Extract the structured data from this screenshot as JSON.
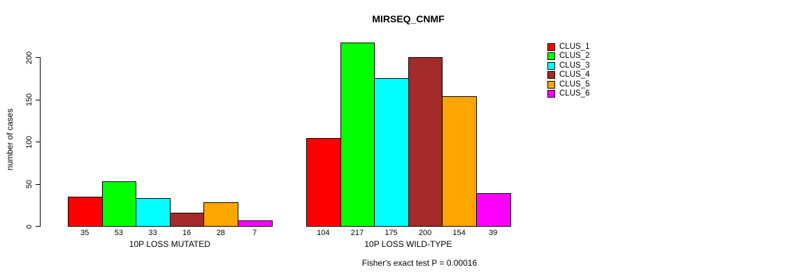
{
  "chart_data": {
    "type": "bar",
    "title": "MIRSEQ_CNMF",
    "ylabel": "number of cases",
    "xlabel": "",
    "ylim": [
      0,
      200
    ],
    "yticks": [
      0,
      50,
      100,
      150,
      200
    ],
    "grid": false,
    "legend_position": "right",
    "categories": [
      "10P LOSS MUTATED",
      "10P LOSS WILD-TYPE"
    ],
    "series": [
      {
        "name": "CLUS_1",
        "color": "#FF0000",
        "values": [
          35,
          104
        ]
      },
      {
        "name": "CLUS_2",
        "color": "#00FF00",
        "values": [
          53,
          217
        ]
      },
      {
        "name": "CLUS_3",
        "color": "#00FFFF",
        "values": [
          33,
          175
        ]
      },
      {
        "name": "CLUS_4",
        "color": "#A52A2A",
        "values": [
          16,
          200
        ]
      },
      {
        "name": "CLUS_5",
        "color": "#FFA500",
        "values": [
          28,
          154
        ]
      },
      {
        "name": "CLUS_6",
        "color": "#FF00FF",
        "values": [
          7,
          39
        ]
      }
    ],
    "bar_value_labels": [
      [
        35,
        53,
        33,
        16,
        28,
        7
      ],
      [
        104,
        217,
        175,
        200,
        154,
        39
      ]
    ],
    "annotation": "Fisher's exact test P = 0.00016"
  }
}
